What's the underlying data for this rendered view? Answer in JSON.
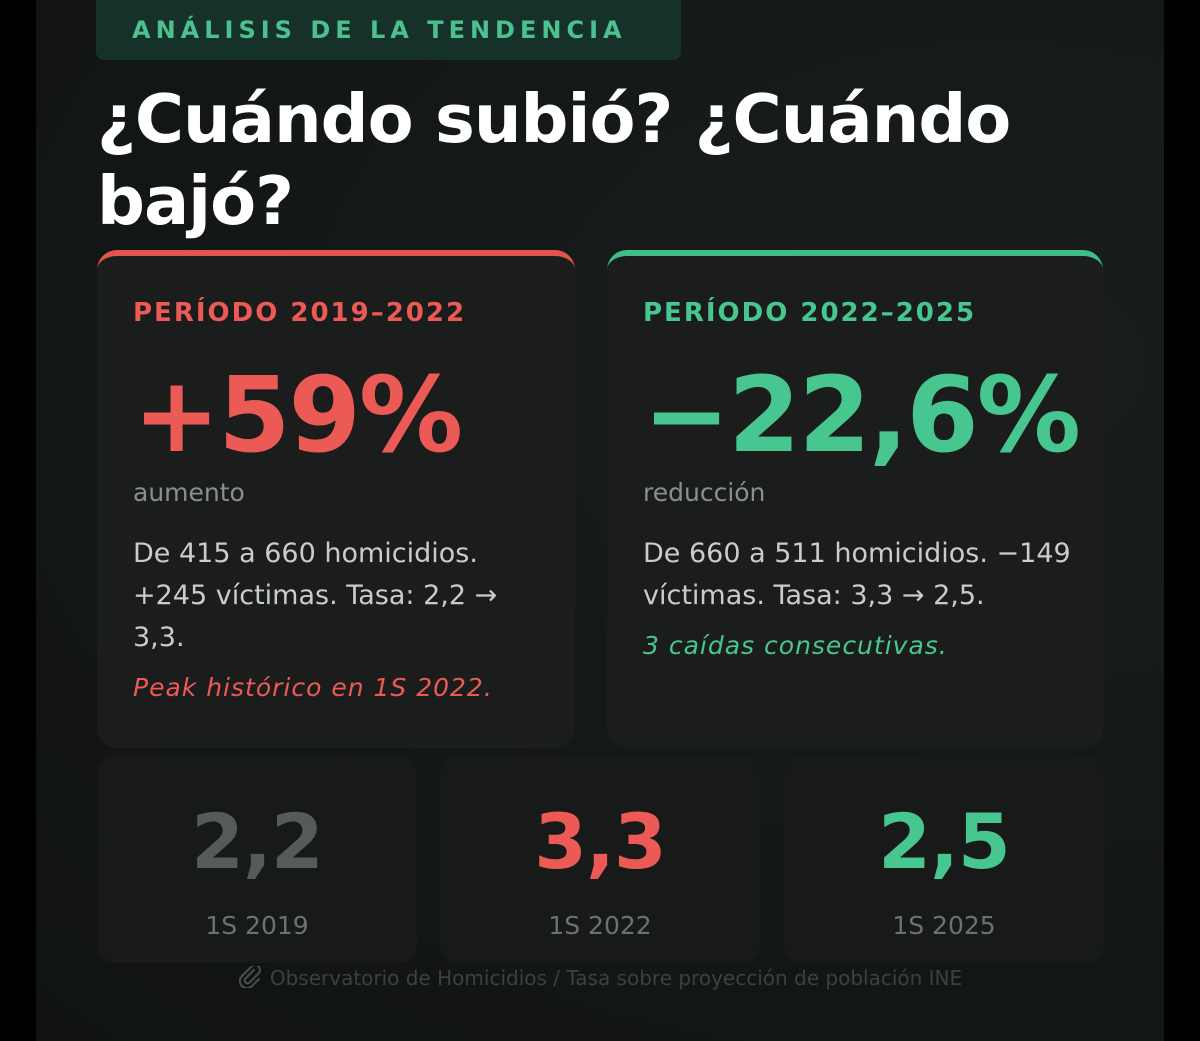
{
  "eyebrow": "ANÁLISIS DE LA TENDENCIA",
  "headline": "¿Cuándo subió? ¿Cuándo bajó?",
  "colors": {
    "red": "#ec5a55",
    "green": "#47c78f",
    "gray": "#565b59",
    "eyebrow_bg": "#16302a"
  },
  "cards": [
    {
      "label": "PERÍODO 2019–2022",
      "value": "+59%",
      "unit": "aumento",
      "description": "De 415 a 660 homicidios. +245 víctimas. Tasa: 2,2 → 3,3.",
      "note": "Peak histórico en 1S 2022."
    },
    {
      "label": "PERÍODO 2022–2025",
      "value": "−22,6%",
      "unit": "reducción",
      "description": "De 660 a 511 homicidios. −149 víctimas. Tasa: 3,3 → 2,5.",
      "note": "3 caídas consecutivas."
    }
  ],
  "stats": [
    {
      "value": "2,2",
      "label": "1S 2019"
    },
    {
      "value": "3,3",
      "label": "1S 2022"
    },
    {
      "value": "2,5",
      "label": "1S 2025"
    }
  ],
  "footer": {
    "icon": "paperclip-icon",
    "text": "Observatorio de Homicidios / Tasa sobre proyección de población INE"
  }
}
